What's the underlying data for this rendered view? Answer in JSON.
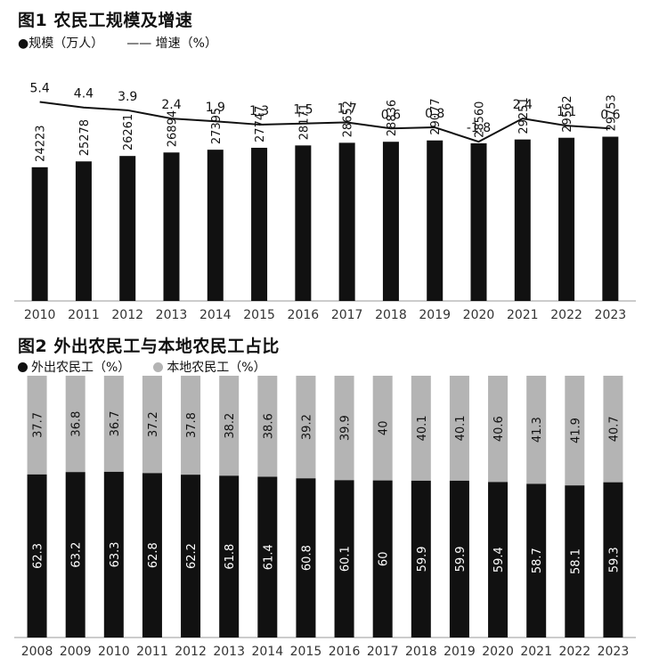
{
  "colors": {
    "black": "#111111",
    "gray": "#b4b4b4",
    "axis": "#999999"
  },
  "chart_data": [
    {
      "type": "bar",
      "title": "图1 农民工规模及增速",
      "legend": [
        {
          "label": "●规模（万人）"
        },
        {
          "label": "—— 增速（%）"
        }
      ],
      "categories": [
        "2010",
        "2011",
        "2012",
        "2013",
        "2014",
        "2015",
        "2016",
        "2017",
        "2018",
        "2019",
        "2020",
        "2021",
        "2022",
        "2023"
      ],
      "series": [
        {
          "name": "规模（万人）",
          "type": "bar",
          "values": [
            24223,
            25278,
            26261,
            26894,
            27395,
            27747,
            28171,
            28652,
            28836,
            29077,
            28560,
            29251,
            29562,
            29753
          ]
        },
        {
          "name": "增速（%）",
          "type": "line",
          "values": [
            5.4,
            4.4,
            3.9,
            2.4,
            1.9,
            1.3,
            1.5,
            1.7,
            0.6,
            0.8,
            -1.8,
            2.4,
            1.1,
            0.6
          ]
        }
      ],
      "bar_labels": [
        "24223",
        "25278",
        "26261",
        "26894",
        "27395",
        "27747",
        "28171",
        "28652",
        "28836",
        "29077",
        "28560",
        "29251",
        "29562",
        "29753"
      ],
      "line_labels": [
        "5.4",
        "4.4",
        "3.9",
        "2.4",
        "1.9",
        "1.3",
        "1.5",
        "1.7",
        "0.6",
        "0.8",
        "-1.8",
        "2.4",
        "1.1",
        "0.6"
      ]
    },
    {
      "type": "bar",
      "stacked": true,
      "title": "图2 外出农民工与本地农民工占比",
      "legend": [
        {
          "label": "外出农民工（%）"
        },
        {
          "label": "本地农民工（%）"
        }
      ],
      "categories": [
        "2008",
        "2009",
        "2010",
        "2011",
        "2012",
        "2013",
        "2014",
        "2015",
        "2016",
        "2017",
        "2018",
        "2019",
        "2020",
        "2021",
        "2022",
        "2023"
      ],
      "series": [
        {
          "name": "外出农民工（%）",
          "values": [
            62.3,
            63.2,
            63.3,
            62.8,
            62.2,
            61.8,
            61.4,
            60.8,
            60.1,
            60,
            59.9,
            59.9,
            59.4,
            58.7,
            58.1,
            59.3
          ]
        },
        {
          "name": "本地农民工（%）",
          "values": [
            37.7,
            36.8,
            36.7,
            37.2,
            37.8,
            38.2,
            38.6,
            39.2,
            39.9,
            40,
            40.1,
            40.1,
            40.6,
            41.3,
            41.9,
            40.7
          ]
        }
      ],
      "migrant_labels": [
        "62.3",
        "63.2",
        "63.3",
        "62.8",
        "62.2",
        "61.8",
        "61.4",
        "60.8",
        "60.1",
        "60",
        "59.9",
        "59.9",
        "59.4",
        "58.7",
        "58.1",
        "59.3"
      ],
      "local_labels": [
        "37.7",
        "36.8",
        "36.7",
        "37.2",
        "37.8",
        "38.2",
        "38.6",
        "39.2",
        "39.9",
        "40",
        "40.1",
        "40.1",
        "40.6",
        "41.3",
        "41.9",
        "40.7"
      ]
    }
  ]
}
